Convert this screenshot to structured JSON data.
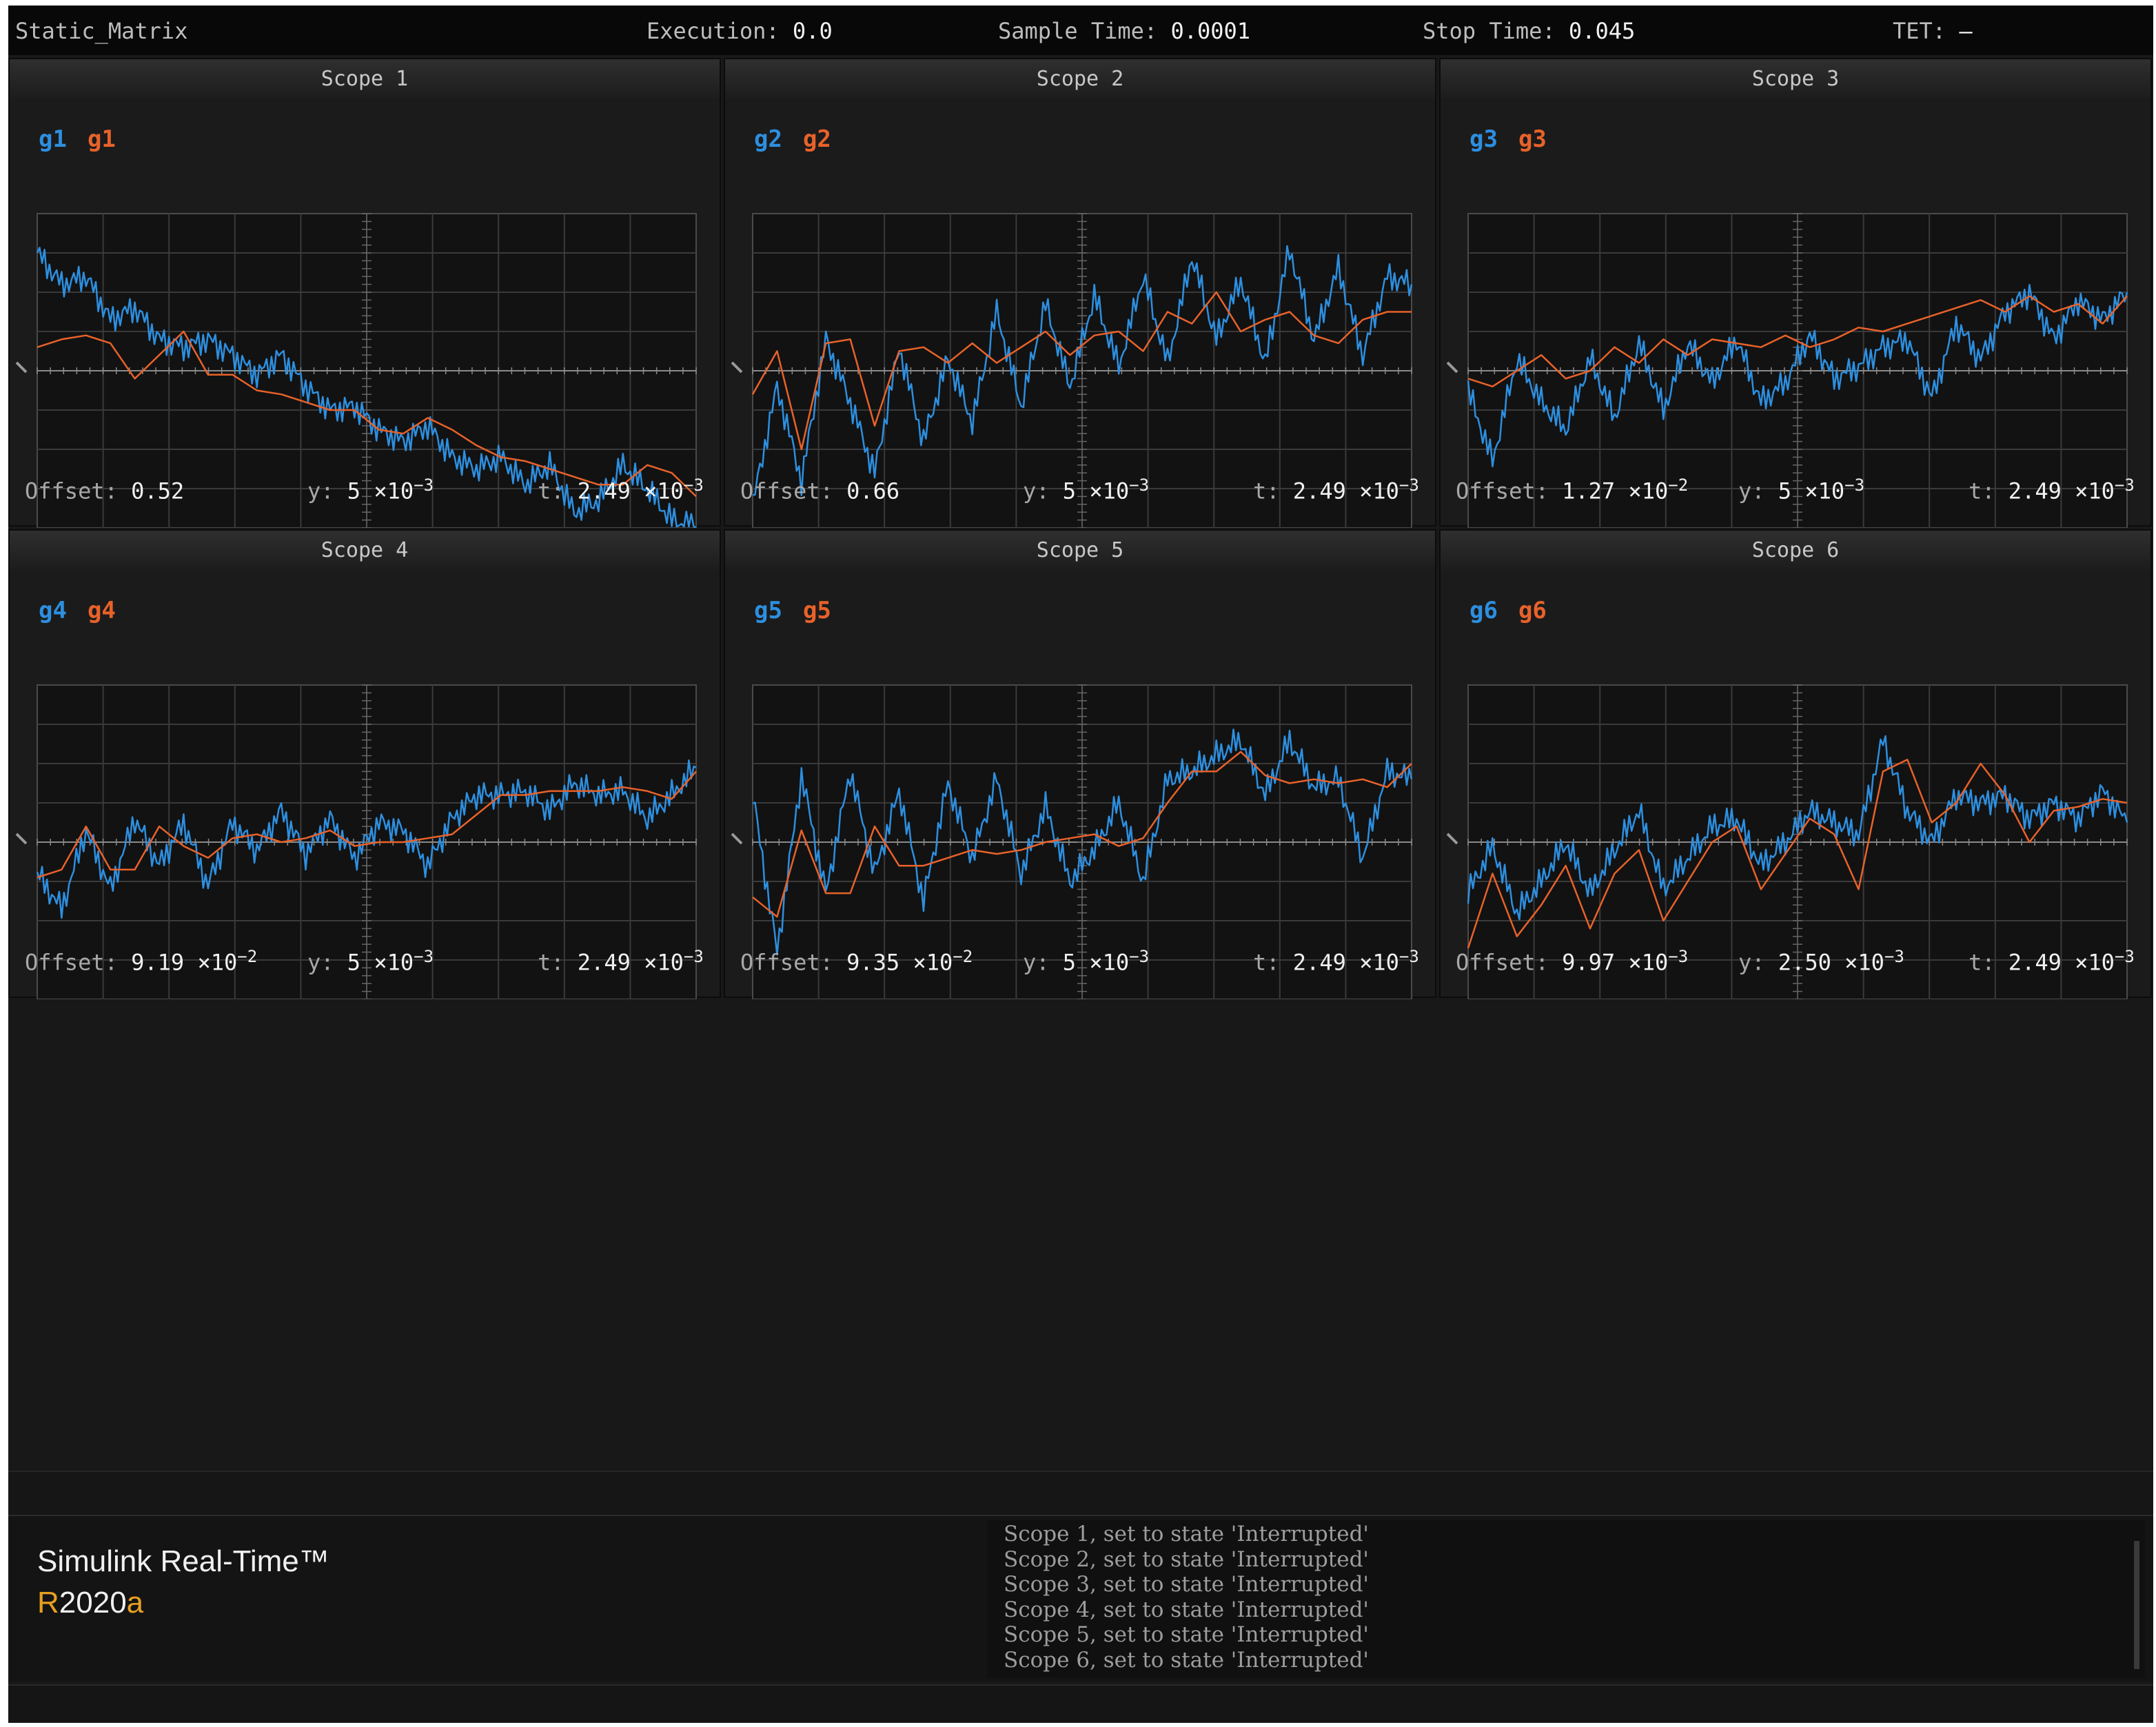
{
  "topbar": {
    "model": "Static_Matrix",
    "execution_label": "Execution:",
    "execution_value": "0.0",
    "sample_label": "Sample Time:",
    "sample_value": "0.0001",
    "stop_label": "Stop Time:",
    "stop_value": "0.045",
    "tet_label": "TET:",
    "tet_value": "–"
  },
  "colors": {
    "signal": "#2d8fe0",
    "reference": "#e8622a",
    "grid": "#3a3a3a",
    "axis": "#8a8a8a"
  },
  "scopes": [
    {
      "title": "Scope 1",
      "legend_a": "g1",
      "legend_b": "g1",
      "offset_label": "Offset:",
      "offset_value": "0.52",
      "offset_exp": "",
      "y_label": "y:",
      "y_value": "5 ×10",
      "y_exp": "−3",
      "t_label": "t:",
      "t_value": "2.49 ×10",
      "t_exp": "−3"
    },
    {
      "title": "Scope 2",
      "legend_a": "g2",
      "legend_b": "g2",
      "offset_label": "Offset:",
      "offset_value": "0.66",
      "offset_exp": "",
      "y_label": "y:",
      "y_value": "5 ×10",
      "y_exp": "−3",
      "t_label": "t:",
      "t_value": "2.49 ×10",
      "t_exp": "−3"
    },
    {
      "title": "Scope 3",
      "legend_a": "g3",
      "legend_b": "g3",
      "offset_label": "Offset:",
      "offset_value": "1.27 ×10",
      "offset_exp": "−2",
      "y_label": "y:",
      "y_value": "5 ×10",
      "y_exp": "−3",
      "t_label": "t:",
      "t_value": "2.49 ×10",
      "t_exp": "−3"
    },
    {
      "title": "Scope 4",
      "legend_a": "g4",
      "legend_b": "g4",
      "offset_label": "Offset:",
      "offset_value": "9.19 ×10",
      "offset_exp": "−2",
      "y_label": "y:",
      "y_value": "5 ×10",
      "y_exp": "−3",
      "t_label": "t:",
      "t_value": "2.49 ×10",
      "t_exp": "−3"
    },
    {
      "title": "Scope 5",
      "legend_a": "g5",
      "legend_b": "g5",
      "offset_label": "Offset:",
      "offset_value": "9.35 ×10",
      "offset_exp": "−2",
      "y_label": "y:",
      "y_value": "5 ×10",
      "y_exp": "−3",
      "t_label": "t:",
      "t_value": "2.49 ×10",
      "t_exp": "−3"
    },
    {
      "title": "Scope 6",
      "legend_a": "g6",
      "legend_b": "g6",
      "offset_label": "Offset:",
      "offset_value": "9.97 ×10",
      "offset_exp": "−3",
      "y_label": "y:",
      "y_value": "2.50 ×10",
      "y_exp": "−3",
      "t_label": "t:",
      "t_value": "2.49 ×10",
      "t_exp": "−3"
    }
  ],
  "chart_data": [
    {
      "type": "line",
      "title": "Scope 1",
      "series": [
        {
          "name": "g1",
          "values": [
            3.0,
            2.2,
            2.4,
            1.3,
            1.6,
            0.8,
            0.6,
            0.8,
            0.4,
            -0.1,
            0.4,
            -0.4,
            -1.0,
            -0.9,
            -1.5,
            -1.8,
            -1.4,
            -2.2,
            -2.5,
            -2.2,
            -2.9,
            -2.4,
            -3.6,
            -3.3,
            -2.4,
            -3.0,
            -3.8,
            -4.0
          ]
        },
        {
          "name": "g1",
          "values": [
            0.6,
            0.8,
            0.9,
            0.7,
            -0.2,
            0.4,
            1.0,
            -0.1,
            -0.1,
            -0.5,
            -0.6,
            -0.8,
            -1.0,
            -1.0,
            -1.5,
            -1.6,
            -1.2,
            -1.5,
            -1.9,
            -2.2,
            -2.3,
            -2.5,
            -2.7,
            -2.9,
            -2.9,
            -2.4,
            -2.6,
            -3.2
          ]
        }
      ]
    },
    {
      "type": "line",
      "title": "Scope 2",
      "series": [
        {
          "name": "g2",
          "values": [
            -3.4,
            -0.4,
            -2.8,
            0.8,
            -0.8,
            -2.6,
            0.6,
            -1.8,
            0.3,
            -1.3,
            1.5,
            -0.9,
            1.7,
            -0.4,
            1.9,
            0.1,
            2.4,
            0.2,
            2.9,
            0.8,
            2.3,
            0.2,
            3.1,
            0.8,
            2.6,
            0.4,
            2.4,
            2.2
          ]
        },
        {
          "name": "g2",
          "values": [
            -0.6,
            0.5,
            -2.0,
            0.7,
            0.8,
            -1.4,
            0.5,
            0.6,
            0.2,
            0.7,
            0.2,
            0.6,
            1.0,
            0.4,
            0.9,
            1.0,
            0.5,
            1.5,
            1.2,
            2.0,
            1.0,
            1.3,
            1.5,
            0.9,
            0.7,
            1.3,
            1.5,
            1.5
          ]
        }
      ]
    },
    {
      "type": "line",
      "title": "Scope 3",
      "series": [
        {
          "name": "g3",
          "values": [
            -0.5,
            -2.3,
            0.3,
            -0.8,
            -1.5,
            0.3,
            -1.2,
            0.7,
            -1.0,
            0.7,
            -0.3,
            0.8,
            -0.8,
            -0.3,
            0.9,
            -0.2,
            0.1,
            0.6,
            0.8,
            -0.7,
            1.2,
            0.3,
            1.5,
            2.0,
            0.8,
            1.8,
            1.3,
            2.0
          ]
        },
        {
          "name": "g3",
          "values": [
            -0.2,
            -0.4,
            0.0,
            0.4,
            -0.2,
            0.0,
            0.6,
            0.2,
            0.8,
            0.4,
            0.8,
            0.7,
            0.6,
            0.9,
            0.6,
            0.8,
            1.1,
            1.0,
            1.2,
            1.4,
            1.6,
            1.8,
            1.5,
            1.9,
            1.5,
            1.7,
            1.2,
            1.9
          ]
        }
      ]
    },
    {
      "type": "line",
      "title": "Scope 4",
      "series": [
        {
          "name": "g4",
          "values": [
            -0.8,
            -1.7,
            0.3,
            -1.2,
            0.6,
            -0.6,
            0.5,
            -1.1,
            0.5,
            -0.2,
            0.8,
            -0.3,
            0.6,
            -0.4,
            0.5,
            0.3,
            -0.6,
            0.6,
            1.2,
            1.2,
            1.3,
            0.8,
            1.5,
            1.2,
            1.3,
            0.6,
            1.2,
            1.9
          ]
        },
        {
          "name": "g4",
          "values": [
            -0.9,
            -0.7,
            0.4,
            -0.7,
            -0.7,
            0.4,
            -0.1,
            -0.4,
            0.1,
            0.2,
            0.0,
            0.1,
            0.3,
            -0.1,
            0.0,
            0.0,
            0.1,
            0.2,
            0.7,
            1.2,
            1.2,
            1.3,
            1.3,
            1.3,
            1.4,
            1.3,
            1.1,
            1.8
          ]
        }
      ]
    },
    {
      "type": "line",
      "title": "Scope 5",
      "series": [
        {
          "name": "g5",
          "values": [
            1.2,
            -2.8,
            1.7,
            -1.3,
            1.8,
            -0.8,
            1.3,
            -1.5,
            1.5,
            -0.4,
            1.6,
            -0.8,
            0.9,
            -1.0,
            -0.2,
            1.0,
            -1.0,
            1.6,
            1.8,
            2.2,
            2.6,
            1.2,
            2.6,
            1.4,
            1.6,
            -0.4,
            1.8,
            1.6
          ]
        },
        {
          "name": "g5",
          "values": [
            -1.4,
            -1.9,
            0.3,
            -1.3,
            -1.3,
            0.4,
            -0.6,
            -0.6,
            -0.4,
            -0.2,
            -0.3,
            -0.2,
            0.0,
            0.1,
            0.2,
            -0.1,
            0.1,
            1.0,
            1.8,
            1.8,
            2.3,
            1.7,
            1.5,
            1.6,
            1.5,
            1.6,
            1.4,
            2.0
          ]
        }
      ]
    },
    {
      "type": "line",
      "title": "Scope 6",
      "series": [
        {
          "name": "g6",
          "values": [
            -1.3,
            -0.1,
            -1.8,
            -1.0,
            0.0,
            -1.3,
            -0.2,
            0.8,
            -1.2,
            -0.4,
            0.4,
            0.6,
            -0.6,
            0.0,
            0.8,
            0.5,
            0.2,
            2.6,
            0.8,
            0.0,
            1.2,
            1.0,
            1.2,
            0.6,
            1.0,
            0.6,
            1.3,
            0.5
          ]
        },
        {
          "name": "g6",
          "values": [
            -2.7,
            -0.8,
            -2.4,
            -1.6,
            -0.6,
            -2.2,
            -0.8,
            -0.2,
            -2.0,
            -1.0,
            0.0,
            0.4,
            -1.2,
            -0.3,
            0.6,
            0.2,
            -1.2,
            1.8,
            2.1,
            0.5,
            1.0,
            2.0,
            1.2,
            0.0,
            0.8,
            0.9,
            1.1,
            1.0
          ]
        }
      ]
    }
  ],
  "brand": {
    "product": "Simulink Real-Time™",
    "release_r": "R",
    "release_num": "2020",
    "release_a": "a"
  },
  "log": [
    "Scope 1, set to state 'Interrupted'",
    "Scope 2, set to state 'Interrupted'",
    "Scope 3, set to state 'Interrupted'",
    "Scope 4, set to state 'Interrupted'",
    "Scope 5, set to state 'Interrupted'",
    "Scope 6, set to state 'Interrupted'"
  ]
}
